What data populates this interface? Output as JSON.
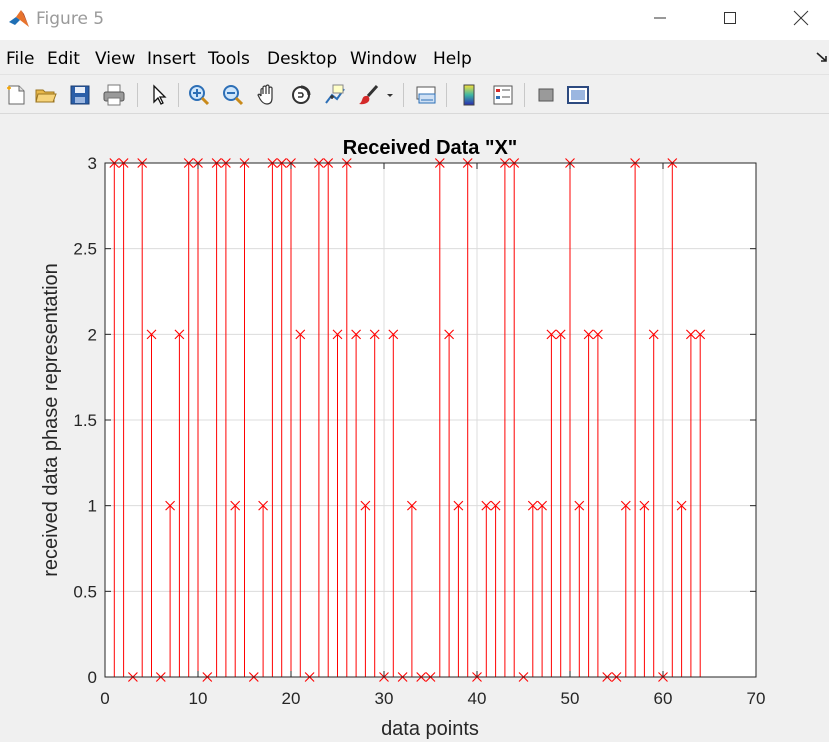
{
  "window": {
    "title": "Figure 5",
    "controls": {
      "minimize": "minimize",
      "maximize": "maximize",
      "close": "close"
    }
  },
  "menu": [
    "File",
    "Edit",
    "View",
    "Insert",
    "Tools",
    "Desktop",
    "Window",
    "Help"
  ],
  "toolbar": {
    "icons": [
      "new-figure-icon",
      "open-file-icon",
      "save-icon",
      "print-icon",
      "pointer-icon",
      "zoom-in-icon",
      "zoom-out-icon",
      "pan-hand-icon",
      "rotate-3d-icon",
      "data-cursor-icon",
      "brush-icon",
      "brush-dropdown-icon",
      "link-plot-icon",
      "colorbar-icon",
      "legend-icon",
      "hide-plot-tools-icon",
      "show-plot-tools-icon"
    ]
  },
  "colors": {
    "stem": "#ff0000",
    "axes_bg": "#ffffff",
    "grid": "#dcdcdc",
    "figure_bg": "#f0f0f0"
  },
  "chart_data": {
    "type": "stem",
    "title": "Received Data \"X\"",
    "xlabel": "data points",
    "ylabel": "received data phase representation",
    "xlim": [
      0,
      70
    ],
    "ylim": [
      0,
      3
    ],
    "xticks": [
      0,
      10,
      20,
      30,
      40,
      50,
      60,
      70
    ],
    "yticks": [
      0,
      0.5,
      1,
      1.5,
      2,
      2.5,
      3
    ],
    "ytick_labels": [
      "0",
      "0.5",
      "1",
      "1.5",
      "2",
      "2.5",
      "3"
    ],
    "grid": true,
    "marker": "x",
    "x": [
      1,
      2,
      3,
      4,
      5,
      6,
      7,
      8,
      9,
      10,
      11,
      12,
      13,
      14,
      15,
      16,
      17,
      18,
      19,
      20,
      21,
      22,
      23,
      24,
      25,
      26,
      27,
      28,
      29,
      30,
      31,
      32,
      33,
      34,
      35,
      36,
      37,
      38,
      39,
      40,
      41,
      42,
      43,
      44,
      45,
      46,
      47,
      48,
      49,
      50,
      51,
      52,
      53,
      54,
      55,
      56,
      57,
      58,
      59,
      60,
      61,
      62,
      63,
      64
    ],
    "y": [
      3,
      3,
      0,
      3,
      2,
      0,
      1,
      2,
      3,
      3,
      0,
      3,
      3,
      1,
      3,
      0,
      1,
      3,
      3,
      3,
      2,
      0,
      3,
      3,
      2,
      3,
      2,
      1,
      2,
      0,
      2,
      0,
      1,
      0,
      0,
      3,
      2,
      1,
      3,
      0,
      1,
      1,
      3,
      3,
      0,
      1,
      1,
      2,
      2,
      3,
      1,
      2,
      2,
      0,
      0,
      1,
      3,
      1,
      2,
      0,
      3,
      1,
      2,
      2
    ]
  }
}
